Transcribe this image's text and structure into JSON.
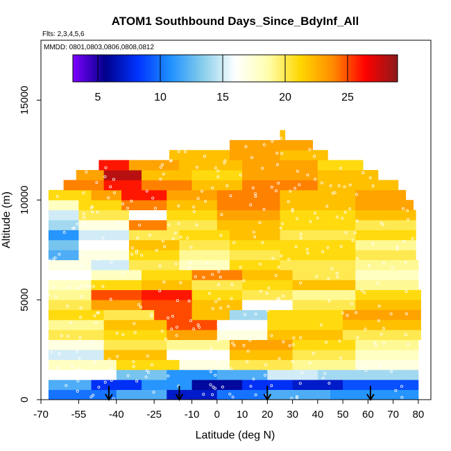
{
  "chart_data": {
    "type": "heatmap",
    "title": "ATOM1 Southbound Days_Since_BdyInf_All",
    "note_flights": "Flts: 2,3,4,5,6",
    "note_dates": "MMDD: 0801,0803,0806,0808,0812",
    "xlabel": "Latitude (deg N)",
    "ylabel": "Altitude (m)",
    "xlim": [
      -70,
      85
    ],
    "ylim": [
      0,
      18000
    ],
    "x_ticks": [
      -70,
      -55,
      -40,
      -25,
      -10,
      0,
      10,
      20,
      30,
      40,
      50,
      60,
      70,
      80
    ],
    "x_tick_labels": [
      "-70",
      "-55",
      "-40",
      "-25",
      "-10",
      "0",
      "10",
      "20",
      "30",
      "40",
      "50",
      "60",
      "70",
      "80"
    ],
    "y_ticks": [
      0,
      5000,
      10000,
      15000
    ],
    "y_tick_labels": [
      "0",
      "5000",
      "10000",
      "15000"
    ],
    "colorbar": {
      "range": [
        3,
        29
      ],
      "ticks": [
        5,
        10,
        15,
        20,
        25
      ],
      "tick_labels": [
        "5",
        "10",
        "15",
        "20",
        "25"
      ],
      "colors": [
        "#7f00ff",
        "#00008b",
        "#0033ff",
        "#1e90ff",
        "#87ceeb",
        "#ffffff",
        "#ffffb0",
        "#ffd700",
        "#ff8c00",
        "#ff0000",
        "#8b1a1a"
      ]
    },
    "arrow_latitudes": [
      -43,
      -15,
      20,
      61
    ],
    "altitude_bands": [
      {
        "alt": 250,
        "x_start": -67,
        "x_end": 80,
        "values": [
          {
            "from": -67,
            "to": -40,
            "v": 10
          },
          {
            "from": -40,
            "to": -20,
            "v": 12
          },
          {
            "from": -20,
            "to": 0,
            "v": 7
          },
          {
            "from": 0,
            "to": 20,
            "v": 10
          },
          {
            "from": 20,
            "to": 45,
            "v": 12
          },
          {
            "from": 45,
            "to": 80,
            "v": 11
          }
        ]
      },
      {
        "alt": 750,
        "x_start": -67,
        "x_end": 80,
        "values": [
          {
            "from": -67,
            "to": -50,
            "v": 12
          },
          {
            "from": -50,
            "to": -30,
            "v": 8
          },
          {
            "from": -30,
            "to": -10,
            "v": 11
          },
          {
            "from": -10,
            "to": 10,
            "v": 6
          },
          {
            "from": 10,
            "to": 30,
            "v": 8
          },
          {
            "from": 30,
            "to": 50,
            "v": 7
          },
          {
            "from": 50,
            "to": 80,
            "v": 9
          }
        ]
      },
      {
        "alt": 1250,
        "x_start": -67,
        "x_end": 80,
        "values": [
          {
            "from": -67,
            "to": -40,
            "v": 16
          },
          {
            "from": -40,
            "to": -20,
            "v": 13
          },
          {
            "from": -20,
            "to": 0,
            "v": 11
          },
          {
            "from": 0,
            "to": 20,
            "v": 12
          },
          {
            "from": 20,
            "to": 40,
            "v": 15
          },
          {
            "from": 40,
            "to": 80,
            "v": 14
          }
        ]
      },
      {
        "alt": 1750,
        "x_start": -67,
        "x_end": 80,
        "values": [
          {
            "from": -67,
            "to": -40,
            "v": 18
          },
          {
            "from": -40,
            "to": -15,
            "v": 21
          },
          {
            "from": -15,
            "to": 5,
            "v": 17
          },
          {
            "from": 5,
            "to": 30,
            "v": 20
          },
          {
            "from": 30,
            "to": 55,
            "v": 19
          },
          {
            "from": 55,
            "to": 80,
            "v": 17
          }
        ]
      },
      {
        "alt": 2250,
        "x_start": -67,
        "x_end": 80,
        "values": [
          {
            "from": -67,
            "to": -45,
            "v": 15
          },
          {
            "from": -45,
            "to": -20,
            "v": 22
          },
          {
            "from": -20,
            "to": 5,
            "v": 16
          },
          {
            "from": 5,
            "to": 30,
            "v": 22
          },
          {
            "from": 30,
            "to": 55,
            "v": 20
          },
          {
            "from": 55,
            "to": 80,
            "v": 18
          }
        ]
      },
      {
        "alt": 2750,
        "x_start": -67,
        "x_end": 80,
        "values": [
          {
            "from": -67,
            "to": -45,
            "v": 17
          },
          {
            "from": -45,
            "to": -20,
            "v": 20
          },
          {
            "from": -20,
            "to": 5,
            "v": 19
          },
          {
            "from": 5,
            "to": 30,
            "v": 23
          },
          {
            "from": 30,
            "to": 55,
            "v": 21
          },
          {
            "from": 55,
            "to": 80,
            "v": 19
          }
        ]
      },
      {
        "alt": 3250,
        "x_start": -67,
        "x_end": 81,
        "values": [
          {
            "from": -67,
            "to": -45,
            "v": 20
          },
          {
            "from": -45,
            "to": -20,
            "v": 21
          },
          {
            "from": -20,
            "to": 0,
            "v": 23
          },
          {
            "from": 0,
            "to": 20,
            "v": 17
          },
          {
            "from": 20,
            "to": 50,
            "v": 22
          },
          {
            "from": 50,
            "to": 81,
            "v": 20
          }
        ]
      },
      {
        "alt": 3750,
        "x_start": -67,
        "x_end": 81,
        "values": [
          {
            "from": -67,
            "to": -45,
            "v": 19
          },
          {
            "from": -45,
            "to": -20,
            "v": 22
          },
          {
            "from": -20,
            "to": 0,
            "v": 25
          },
          {
            "from": 0,
            "to": 20,
            "v": 16
          },
          {
            "from": 20,
            "to": 50,
            "v": 21
          },
          {
            "from": 50,
            "to": 81,
            "v": 22
          }
        ]
      },
      {
        "alt": 4250,
        "x_start": -67,
        "x_end": 81,
        "values": [
          {
            "from": -67,
            "to": -45,
            "v": 21
          },
          {
            "from": -45,
            "to": -25,
            "v": 20
          },
          {
            "from": -25,
            "to": -10,
            "v": 25
          },
          {
            "from": -10,
            "to": 5,
            "v": 22
          },
          {
            "from": 5,
            "to": 20,
            "v": 14
          },
          {
            "from": 20,
            "to": 50,
            "v": 21
          },
          {
            "from": 50,
            "to": 81,
            "v": 23
          }
        ]
      },
      {
        "alt": 4750,
        "x_start": -67,
        "x_end": 81,
        "values": [
          {
            "from": -67,
            "to": -50,
            "v": 20
          },
          {
            "from": -50,
            "to": -30,
            "v": 23
          },
          {
            "from": -30,
            "to": -10,
            "v": 25
          },
          {
            "from": -10,
            "to": 10,
            "v": 22
          },
          {
            "from": 10,
            "to": 30,
            "v": 16
          },
          {
            "from": 30,
            "to": 55,
            "v": 20
          },
          {
            "from": 55,
            "to": 81,
            "v": 22
          }
        ]
      },
      {
        "alt": 5250,
        "x_start": -67,
        "x_end": 81,
        "values": [
          {
            "from": -67,
            "to": -50,
            "v": 19
          },
          {
            "from": -50,
            "to": -30,
            "v": 25
          },
          {
            "from": -30,
            "to": -10,
            "v": 26
          },
          {
            "from": -10,
            "to": 10,
            "v": 21
          },
          {
            "from": 10,
            "to": 30,
            "v": 20
          },
          {
            "from": 30,
            "to": 55,
            "v": 19
          },
          {
            "from": 55,
            "to": 81,
            "v": 21
          }
        ]
      },
      {
        "alt": 5750,
        "x_start": -67,
        "x_end": 80,
        "values": [
          {
            "from": -67,
            "to": -50,
            "v": 18
          },
          {
            "from": -50,
            "to": -30,
            "v": 21
          },
          {
            "from": -30,
            "to": -10,
            "v": 22
          },
          {
            "from": -10,
            "to": 10,
            "v": 20
          },
          {
            "from": 10,
            "to": 30,
            "v": 21
          },
          {
            "from": 30,
            "to": 55,
            "v": 22
          },
          {
            "from": 55,
            "to": 80,
            "v": 19
          }
        ]
      },
      {
        "alt": 6250,
        "x_start": -67,
        "x_end": 80,
        "values": [
          {
            "from": -67,
            "to": -50,
            "v": 16
          },
          {
            "from": -50,
            "to": -30,
            "v": 18
          },
          {
            "from": -30,
            "to": -10,
            "v": 21
          },
          {
            "from": -10,
            "to": 10,
            "v": 24
          },
          {
            "from": 10,
            "to": 30,
            "v": 22
          },
          {
            "from": 30,
            "to": 55,
            "v": 20
          },
          {
            "from": 55,
            "to": 80,
            "v": 18
          }
        ]
      },
      {
        "alt": 6750,
        "x_start": -67,
        "x_end": 80,
        "values": [
          {
            "from": -67,
            "to": -50,
            "v": 17
          },
          {
            "from": -50,
            "to": -35,
            "v": 15
          },
          {
            "from": -35,
            "to": -15,
            "v": 20
          },
          {
            "from": -15,
            "to": 5,
            "v": 18
          },
          {
            "from": 5,
            "to": 25,
            "v": 21
          },
          {
            "from": 25,
            "to": 55,
            "v": 20
          },
          {
            "from": 55,
            "to": 80,
            "v": 19
          }
        ]
      },
      {
        "alt": 7250,
        "x_start": -67,
        "x_end": 79,
        "values": [
          {
            "from": -67,
            "to": -55,
            "v": 12
          },
          {
            "from": -55,
            "to": -35,
            "v": 17
          },
          {
            "from": -35,
            "to": -15,
            "v": 21
          },
          {
            "from": -15,
            "to": 5,
            "v": 19
          },
          {
            "from": 5,
            "to": 25,
            "v": 20
          },
          {
            "from": 25,
            "to": 55,
            "v": 21
          },
          {
            "from": 55,
            "to": 79,
            "v": 20
          }
        ]
      },
      {
        "alt": 7750,
        "x_start": -67,
        "x_end": 79,
        "values": [
          {
            "from": -67,
            "to": -55,
            "v": 13
          },
          {
            "from": -55,
            "to": -35,
            "v": 16
          },
          {
            "from": -35,
            "to": -15,
            "v": 22
          },
          {
            "from": -15,
            "to": 5,
            "v": 20
          },
          {
            "from": 5,
            "to": 25,
            "v": 21
          },
          {
            "from": 25,
            "to": 55,
            "v": 21
          },
          {
            "from": 55,
            "to": 79,
            "v": 19
          }
        ]
      },
      {
        "alt": 8250,
        "x_start": -67,
        "x_end": 79,
        "values": [
          {
            "from": -67,
            "to": -55,
            "v": 11
          },
          {
            "from": -55,
            "to": -35,
            "v": 15
          },
          {
            "from": -35,
            "to": -15,
            "v": 20
          },
          {
            "from": -15,
            "to": 5,
            "v": 21
          },
          {
            "from": 5,
            "to": 25,
            "v": 22
          },
          {
            "from": 25,
            "to": 55,
            "v": 20
          },
          {
            "from": 55,
            "to": 79,
            "v": 21
          }
        ]
      },
      {
        "alt": 8750,
        "x_start": -67,
        "x_end": 79,
        "values": [
          {
            "from": -67,
            "to": -55,
            "v": 14
          },
          {
            "from": -55,
            "to": -35,
            "v": 17
          },
          {
            "from": -35,
            "to": -20,
            "v": 24
          },
          {
            "from": -20,
            "to": 0,
            "v": 20
          },
          {
            "from": 0,
            "to": 25,
            "v": 22
          },
          {
            "from": 25,
            "to": 55,
            "v": 21
          },
          {
            "from": 55,
            "to": 79,
            "v": 20
          }
        ]
      },
      {
        "alt": 9250,
        "x_start": -67,
        "x_end": 79,
        "values": [
          {
            "from": -67,
            "to": -55,
            "v": 15
          },
          {
            "from": -55,
            "to": -35,
            "v": 20
          },
          {
            "from": -35,
            "to": -20,
            "v": 16
          },
          {
            "from": -20,
            "to": 0,
            "v": 21
          },
          {
            "from": 0,
            "to": 25,
            "v": 23
          },
          {
            "from": 25,
            "to": 55,
            "v": 21
          },
          {
            "from": 55,
            "to": 79,
            "v": 22
          }
        ]
      },
      {
        "alt": 9750,
        "x_start": -67,
        "x_end": 78,
        "values": [
          {
            "from": -67,
            "to": -55,
            "v": 18
          },
          {
            "from": -55,
            "to": -38,
            "v": 21
          },
          {
            "from": -38,
            "to": -20,
            "v": 24
          },
          {
            "from": -20,
            "to": 0,
            "v": 22
          },
          {
            "from": 0,
            "to": 25,
            "v": 24
          },
          {
            "from": 25,
            "to": 55,
            "v": 22
          },
          {
            "from": 55,
            "to": 78,
            "v": 23
          }
        ]
      },
      {
        "alt": 10250,
        "x_start": -67,
        "x_end": 75,
        "values": [
          {
            "from": -67,
            "to": -50,
            "v": 21
          },
          {
            "from": -50,
            "to": -38,
            "v": 23
          },
          {
            "from": -38,
            "to": -20,
            "v": 26
          },
          {
            "from": -20,
            "to": 0,
            "v": 23
          },
          {
            "from": 0,
            "to": 25,
            "v": 24
          },
          {
            "from": 25,
            "to": 55,
            "v": 22
          },
          {
            "from": 55,
            "to": 75,
            "v": 23
          }
        ]
      },
      {
        "alt": 10750,
        "x_start": -61,
        "x_end": 72,
        "values": [
          {
            "from": -61,
            "to": -45,
            "v": 24
          },
          {
            "from": -45,
            "to": -30,
            "v": 26
          },
          {
            "from": -30,
            "to": -10,
            "v": 24
          },
          {
            "from": -10,
            "to": 10,
            "v": 22
          },
          {
            "from": 10,
            "to": 40,
            "v": 24
          },
          {
            "from": 40,
            "to": 72,
            "v": 22
          }
        ]
      },
      {
        "alt": 11250,
        "x_start": -56,
        "x_end": 64,
        "values": [
          {
            "from": -56,
            "to": -45,
            "v": 23
          },
          {
            "from": -45,
            "to": -30,
            "v": 28
          },
          {
            "from": -30,
            "to": -10,
            "v": 22
          },
          {
            "from": -10,
            "to": 10,
            "v": 21
          },
          {
            "from": 10,
            "to": 40,
            "v": 23
          },
          {
            "from": 40,
            "to": 64,
            "v": 22
          }
        ]
      },
      {
        "alt": 11750,
        "x_start": -47,
        "x_end": 58,
        "values": [
          {
            "from": -47,
            "to": -35,
            "v": 26
          },
          {
            "from": -35,
            "to": -15,
            "v": 23
          },
          {
            "from": -15,
            "to": 10,
            "v": 22
          },
          {
            "from": 10,
            "to": 40,
            "v": 23
          },
          {
            "from": 40,
            "to": 58,
            "v": 21
          }
        ]
      },
      {
        "alt": 12250,
        "x_start": -19,
        "x_end": 44,
        "values": [
          {
            "from": -19,
            "to": 5,
            "v": 22
          },
          {
            "from": 5,
            "to": 25,
            "v": 23
          },
          {
            "from": 25,
            "to": 44,
            "v": 22
          }
        ]
      },
      {
        "alt": 12750,
        "x_start": 5,
        "x_end": 38,
        "values": [
          {
            "from": 5,
            "to": 38,
            "v": 23
          }
        ]
      },
      {
        "alt": 13250,
        "x_start": 25,
        "x_end": 27,
        "values": [
          {
            "from": 25,
            "to": 27,
            "v": 22
          }
        ]
      }
    ]
  }
}
